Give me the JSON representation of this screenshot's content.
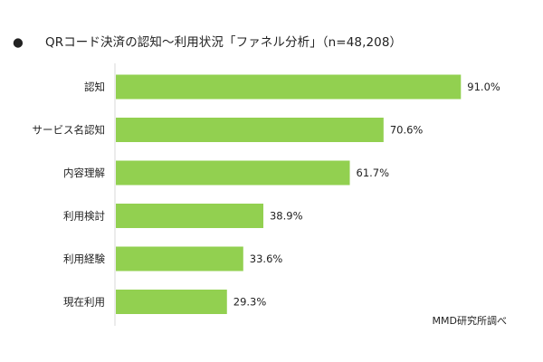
{
  "bullet": "●",
  "source_note": "MMD研究所調べ",
  "colors": {
    "bar": "#92d050",
    "axis": "#d9d9d9",
    "text": "#222222"
  },
  "chart_data": {
    "type": "bar",
    "orientation": "horizontal",
    "title": "QRコード決済の認知～利用状況「ファネル分析」（n=48,208）",
    "categories": [
      "認知",
      "サービス名認知",
      "内容理解",
      "利用検討",
      "利用経験",
      "現在利用"
    ],
    "values": [
      91.0,
      70.6,
      61.7,
      38.9,
      33.6,
      29.3
    ],
    "value_labels": [
      "91.0%",
      "70.6%",
      "61.7%",
      "38.9%",
      "33.6%",
      "29.3%"
    ],
    "unit": "%",
    "xlim": [
      0,
      100
    ],
    "grid": false,
    "legend": "none"
  }
}
